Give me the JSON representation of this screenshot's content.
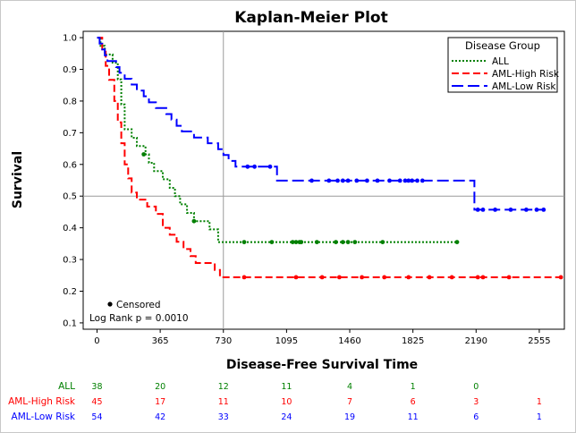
{
  "chart_data": {
    "type": "line",
    "subtype": "step",
    "title": "Kaplan-Meier Plot",
    "xlabel": "Disease-Free Survival Time",
    "ylabel": "Survival",
    "xlim": [
      -80,
      2700
    ],
    "ylim": [
      0.08,
      1.02
    ],
    "xticks": [
      0,
      365,
      730,
      1095,
      1460,
      1825,
      2190,
      2555
    ],
    "yticks": [
      0.1,
      0.2,
      0.3,
      0.4,
      0.5,
      0.6,
      0.7,
      0.8,
      0.9,
      1.0
    ],
    "ytick_labels": [
      "0.1",
      "0.2",
      "0.3",
      "0.4",
      "0.5",
      "0.6",
      "0.7",
      "0.8",
      "0.9",
      "1.0"
    ],
    "reference_lines": {
      "x": 730,
      "y": 0.5
    },
    "legend": {
      "title": "Disease Group",
      "placement": "top-right"
    },
    "inset": {
      "censored_label": "Censored",
      "logrank": "Log Rank p = 0.0010"
    },
    "series": [
      {
        "name": "ALL",
        "color": "#008000",
        "dash": "dotted",
        "steps": [
          [
            0,
            1.0
          ],
          [
            20,
            0.974
          ],
          [
            45,
            0.947
          ],
          [
            90,
            0.921
          ],
          [
            120,
            0.868
          ],
          [
            140,
            0.789
          ],
          [
            160,
            0.711
          ],
          [
            200,
            0.684
          ],
          [
            230,
            0.658
          ],
          [
            280,
            0.632
          ],
          [
            300,
            0.605
          ],
          [
            330,
            0.579
          ],
          [
            380,
            0.553
          ],
          [
            420,
            0.526
          ],
          [
            450,
            0.5
          ],
          [
            480,
            0.474
          ],
          [
            520,
            0.447
          ],
          [
            560,
            0.421
          ],
          [
            650,
            0.395
          ],
          [
            700,
            0.355
          ]
        ],
        "end": 2080,
        "censored": [
          [
            270,
            0.632
          ],
          [
            560,
            0.421
          ],
          [
            850,
            0.355
          ],
          [
            1010,
            0.355
          ],
          [
            1130,
            0.355
          ],
          [
            1150,
            0.355
          ],
          [
            1170,
            0.355
          ],
          [
            1180,
            0.355
          ],
          [
            1270,
            0.355
          ],
          [
            1380,
            0.355
          ],
          [
            1420,
            0.355
          ],
          [
            1450,
            0.355
          ],
          [
            1490,
            0.355
          ],
          [
            1650,
            0.355
          ],
          [
            2080,
            0.355
          ]
        ]
      },
      {
        "name": "AML-High Risk",
        "color": "#ff0000",
        "dash": "dashed",
        "steps": [
          [
            0,
            1.0
          ],
          [
            30,
            0.956
          ],
          [
            50,
            0.911
          ],
          [
            70,
            0.867
          ],
          [
            100,
            0.8
          ],
          [
            120,
            0.733
          ],
          [
            140,
            0.667
          ],
          [
            160,
            0.6
          ],
          [
            180,
            0.556
          ],
          [
            200,
            0.511
          ],
          [
            230,
            0.489
          ],
          [
            290,
            0.467
          ],
          [
            340,
            0.444
          ],
          [
            380,
            0.4
          ],
          [
            420,
            0.378
          ],
          [
            460,
            0.356
          ],
          [
            500,
            0.333
          ],
          [
            540,
            0.311
          ],
          [
            570,
            0.289
          ],
          [
            680,
            0.267
          ],
          [
            710,
            0.244
          ]
        ],
        "end": 2680,
        "censored": [
          [
            850,
            0.244
          ],
          [
            1150,
            0.244
          ],
          [
            1300,
            0.244
          ],
          [
            1400,
            0.244
          ],
          [
            1530,
            0.244
          ],
          [
            1660,
            0.244
          ],
          [
            1800,
            0.244
          ],
          [
            1920,
            0.244
          ],
          [
            2050,
            0.244
          ],
          [
            2200,
            0.244
          ],
          [
            2230,
            0.244
          ],
          [
            2380,
            0.244
          ],
          [
            2680,
            0.244
          ]
        ]
      },
      {
        "name": "AML-Low Risk",
        "color": "#0000ff",
        "dash": "longdash",
        "steps": [
          [
            0,
            1.0
          ],
          [
            15,
            0.981
          ],
          [
            30,
            0.963
          ],
          [
            45,
            0.944
          ],
          [
            60,
            0.926
          ],
          [
            110,
            0.907
          ],
          [
            130,
            0.889
          ],
          [
            160,
            0.87
          ],
          [
            200,
            0.852
          ],
          [
            230,
            0.833
          ],
          [
            270,
            0.815
          ],
          [
            300,
            0.796
          ],
          [
            340,
            0.778
          ],
          [
            400,
            0.759
          ],
          [
            430,
            0.741
          ],
          [
            460,
            0.722
          ],
          [
            490,
            0.704
          ],
          [
            560,
            0.685
          ],
          [
            640,
            0.667
          ],
          [
            700,
            0.648
          ],
          [
            730,
            0.63
          ],
          [
            760,
            0.611
          ],
          [
            800,
            0.593
          ],
          [
            1040,
            0.549
          ],
          [
            2180,
            0.457
          ]
        ],
        "end": 2580,
        "censored": [
          [
            870,
            0.593
          ],
          [
            910,
            0.593
          ],
          [
            1000,
            0.593
          ],
          [
            1240,
            0.549
          ],
          [
            1340,
            0.549
          ],
          [
            1390,
            0.549
          ],
          [
            1420,
            0.549
          ],
          [
            1450,
            0.549
          ],
          [
            1500,
            0.549
          ],
          [
            1560,
            0.549
          ],
          [
            1620,
            0.549
          ],
          [
            1690,
            0.549
          ],
          [
            1750,
            0.549
          ],
          [
            1780,
            0.549
          ],
          [
            1800,
            0.549
          ],
          [
            1820,
            0.549
          ],
          [
            1850,
            0.549
          ],
          [
            1880,
            0.549
          ],
          [
            2200,
            0.457
          ],
          [
            2230,
            0.457
          ],
          [
            2300,
            0.457
          ],
          [
            2390,
            0.457
          ],
          [
            2480,
            0.457
          ],
          [
            2540,
            0.457
          ],
          [
            2580,
            0.457
          ]
        ]
      }
    ],
    "at_risk": {
      "x": [
        0,
        365,
        730,
        1095,
        1460,
        1825,
        2190,
        2555
      ],
      "rows": [
        {
          "name": "ALL",
          "color": "#008000",
          "values": [
            "38",
            "20",
            "12",
            "11",
            "4",
            "1",
            "0",
            ""
          ]
        },
        {
          "name": "AML-High Risk",
          "color": "#ff0000",
          "values": [
            "45",
            "17",
            "11",
            "10",
            "7",
            "6",
            "3",
            "1"
          ]
        },
        {
          "name": "AML-Low Risk",
          "color": "#0000ff",
          "values": [
            "54",
            "42",
            "33",
            "24",
            "19",
            "11",
            "6",
            "1"
          ]
        }
      ]
    }
  }
}
